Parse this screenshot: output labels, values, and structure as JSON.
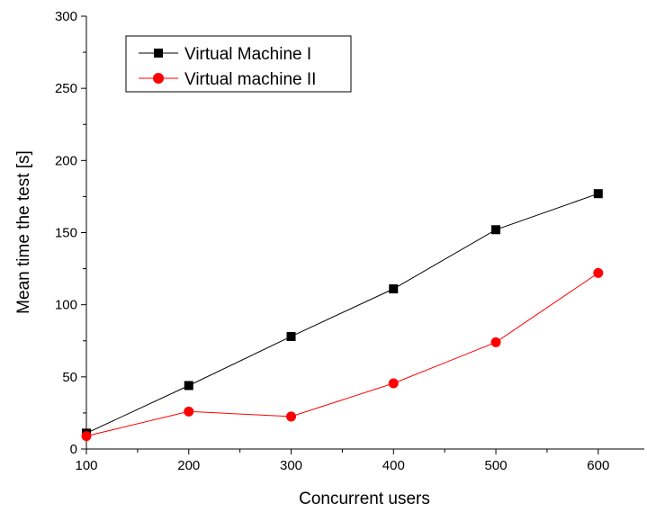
{
  "chart_data": {
    "type": "line",
    "title": "",
    "xlabel": "Concurrent users",
    "ylabel": "Mean time the test [s]",
    "x": [
      100,
      200,
      300,
      400,
      500,
      600
    ],
    "xlim": [
      100,
      645
    ],
    "ylim": [
      0,
      300
    ],
    "xticks": [
      "100",
      "200",
      "300",
      "400",
      "500",
      "600"
    ],
    "yticks": [
      "0",
      "50",
      "100",
      "150",
      "200",
      "250",
      "300"
    ],
    "grid": false,
    "legend_position": "top-left",
    "series": [
      {
        "name": "Virtual Machine I",
        "values": [
          11,
          44,
          78,
          111,
          152,
          177
        ],
        "color": "#000000",
        "marker": "square"
      },
      {
        "name": "Virtual machine II",
        "values": [
          9,
          26,
          22.5,
          45.5,
          74,
          122
        ],
        "color": "#ff0000",
        "marker": "circle"
      }
    ]
  }
}
